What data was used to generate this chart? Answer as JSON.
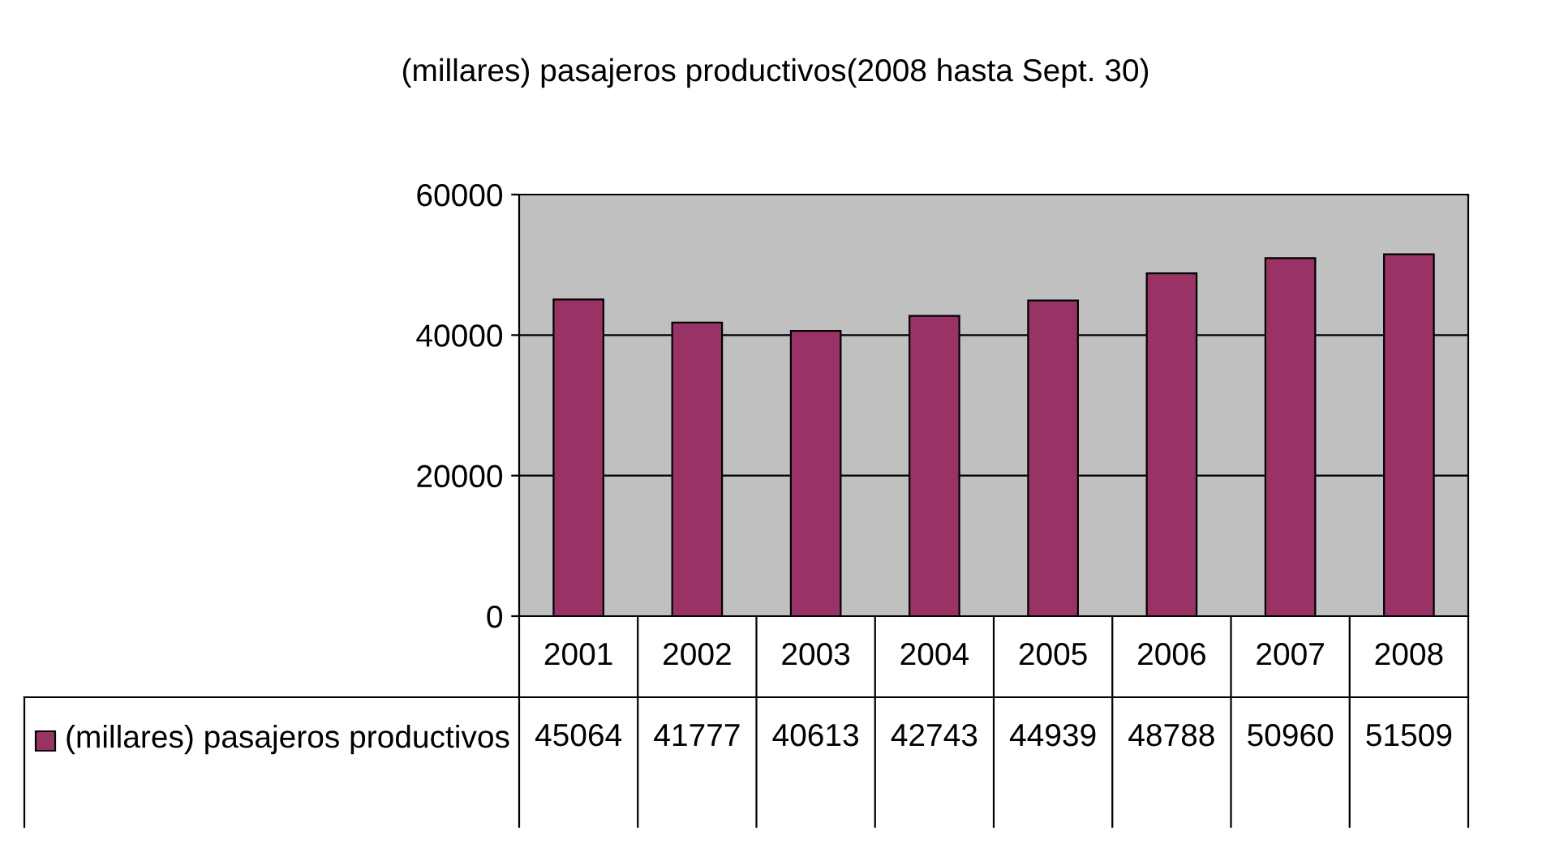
{
  "chart_data": {
    "type": "bar",
    "title": "(millares) pasajeros productivos(2008 hasta Sept. 30)",
    "categories": [
      "2001",
      "2002",
      "2003",
      "2004",
      "2005",
      "2006",
      "2007",
      "2008"
    ],
    "series": [
      {
        "name": "(millares) pasajeros productivos",
        "color": "#993366",
        "values": [
          45064,
          41777,
          40613,
          42743,
          44939,
          48788,
          50960,
          51509
        ]
      }
    ],
    "ylim": [
      0,
      60000
    ],
    "yticks": [
      0,
      20000,
      40000,
      60000
    ],
    "grid": "y",
    "data_labels": true,
    "legend": "bottom left"
  }
}
